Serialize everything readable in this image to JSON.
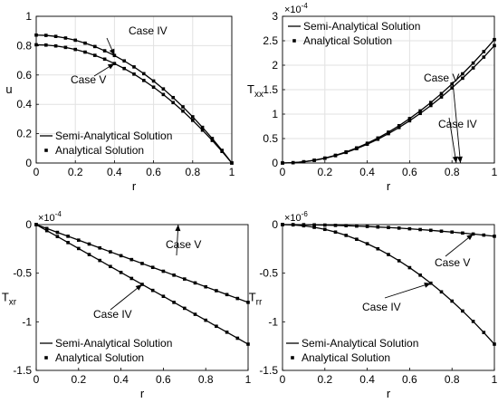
{
  "chart_data": [
    {
      "type": "line",
      "panel": "u",
      "xlabel": "r",
      "ylabel": "u",
      "xlim": [
        0,
        1
      ],
      "ylim": [
        0,
        1
      ],
      "xticks": [
        "0",
        "0.2",
        "0.4",
        "0.6",
        "0.8",
        "1"
      ],
      "yticks": [
        "0",
        "0.2",
        "0.4",
        "0.6",
        "0.8",
        "1"
      ],
      "exponent": "",
      "grid": true,
      "legend": {
        "placement": "bottom-left",
        "line_label": "Semi-Analytical Solution",
        "marker_label": "Analytical Solution"
      },
      "series": [
        {
          "name": "Case IV",
          "x": [
            0,
            0.05,
            0.1,
            0.15,
            0.2,
            0.25,
            0.3,
            0.35,
            0.4,
            0.45,
            0.5,
            0.55,
            0.6,
            0.65,
            0.7,
            0.75,
            0.8,
            0.85,
            0.9,
            0.95,
            1
          ],
          "values": [
            0.872,
            0.87,
            0.863,
            0.852,
            0.837,
            0.817,
            0.794,
            0.765,
            0.733,
            0.696,
            0.655,
            0.609,
            0.559,
            0.505,
            0.446,
            0.383,
            0.315,
            0.243,
            0.167,
            0.086,
            0.0
          ]
        },
        {
          "name": "Case V",
          "x": [
            0,
            0.05,
            0.1,
            0.15,
            0.2,
            0.25,
            0.3,
            0.35,
            0.4,
            0.45,
            0.5,
            0.55,
            0.6,
            0.65,
            0.7,
            0.75,
            0.8,
            0.85,
            0.9,
            0.95,
            1
          ],
          "values": [
            0.806,
            0.804,
            0.798,
            0.788,
            0.774,
            0.756,
            0.734,
            0.708,
            0.678,
            0.644,
            0.606,
            0.563,
            0.517,
            0.467,
            0.412,
            0.354,
            0.291,
            0.224,
            0.154,
            0.079,
            0.0
          ]
        }
      ],
      "annotations": [
        {
          "text": "Case IV",
          "series": 0,
          "point_x": 0.4
        },
        {
          "text": "Case V",
          "series": 1,
          "point_x": 0.4
        }
      ]
    },
    {
      "type": "line",
      "panel": "Txx",
      "xlabel": "r",
      "ylabel": "T",
      "ylabel_sub": "xx",
      "xlim": [
        0,
        1
      ],
      "ylim": [
        0,
        3
      ],
      "xticks": [
        "0",
        "0.2",
        "0.4",
        "0.6",
        "0.8",
        "1"
      ],
      "yticks": [
        "0",
        "0.5",
        "1",
        "1.5",
        "2",
        "2.5",
        "3"
      ],
      "exponent": "-4",
      "grid": true,
      "legend": {
        "placement": "top-left",
        "line_label": "Semi-Analytical Solution",
        "marker_label": "Analytical Solution"
      },
      "series": [
        {
          "name": "Case IV",
          "x": [
            0,
            0.05,
            0.1,
            0.15,
            0.2,
            0.25,
            0.3,
            0.35,
            0.4,
            0.45,
            0.5,
            0.55,
            0.6,
            0.65,
            0.7,
            0.75,
            0.8,
            0.85,
            0.9,
            0.95,
            1
          ],
          "values": [
            0.0,
            0.006,
            0.024,
            0.054,
            0.096,
            0.15,
            0.216,
            0.294,
            0.384,
            0.486,
            0.6,
            0.726,
            0.864,
            1.014,
            1.176,
            1.35,
            1.536,
            1.734,
            1.944,
            2.166,
            2.4
          ]
        },
        {
          "name": "Case V",
          "x": [
            0,
            0.05,
            0.1,
            0.15,
            0.2,
            0.25,
            0.3,
            0.35,
            0.4,
            0.45,
            0.5,
            0.55,
            0.6,
            0.65,
            0.7,
            0.75,
            0.8,
            0.85,
            0.9,
            0.95,
            1
          ],
          "values": [
            0.0,
            0.006,
            0.025,
            0.057,
            0.101,
            0.158,
            0.227,
            0.309,
            0.404,
            0.511,
            0.631,
            0.763,
            0.909,
            1.066,
            1.237,
            1.42,
            1.615,
            1.824,
            2.044,
            2.278,
            2.524
          ]
        }
      ],
      "annotations": [
        {
          "text": "Case V",
          "series": 1,
          "point_x": 0.84
        },
        {
          "text": "Case IV",
          "series": 0,
          "point_x": 0.82
        }
      ]
    },
    {
      "type": "line",
      "panel": "Txr",
      "xlabel": "r",
      "ylabel": "T",
      "ylabel_sub": "xr",
      "xlim": [
        0,
        1
      ],
      "ylim": [
        -1.5,
        0
      ],
      "xticks": [
        "0",
        "0.2",
        "0.4",
        "0.6",
        "0.8",
        "1"
      ],
      "yticks": [
        "0",
        "-0.5",
        "-1",
        "-1.5"
      ],
      "exponent": "-4",
      "grid": false,
      "legend": {
        "placement": "bottom-left",
        "line_label": "Semi-Analytical Solution",
        "marker_label": "Analytical Solution"
      },
      "series": [
        {
          "name": "Case V",
          "x": [
            0,
            0.05,
            0.1,
            0.15,
            0.2,
            0.25,
            0.3,
            0.35,
            0.4,
            0.45,
            0.5,
            0.55,
            0.6,
            0.65,
            0.7,
            0.75,
            0.8,
            0.85,
            0.9,
            0.95,
            1
          ],
          "values": [
            0.0,
            -0.04,
            -0.08,
            -0.12,
            -0.16,
            -0.2,
            -0.24,
            -0.28,
            -0.32,
            -0.36,
            -0.4,
            -0.44,
            -0.48,
            -0.52,
            -0.56,
            -0.6,
            -0.64,
            -0.68,
            -0.72,
            -0.76,
            -0.8
          ]
        },
        {
          "name": "Case IV",
          "x": [
            0,
            0.05,
            0.1,
            0.15,
            0.2,
            0.25,
            0.3,
            0.35,
            0.4,
            0.45,
            0.5,
            0.55,
            0.6,
            0.65,
            0.7,
            0.75,
            0.8,
            0.85,
            0.9,
            0.95,
            1
          ],
          "values": [
            0.0,
            -0.062,
            -0.123,
            -0.185,
            -0.246,
            -0.308,
            -0.369,
            -0.431,
            -0.492,
            -0.554,
            -0.615,
            -0.677,
            -0.738,
            -0.8,
            -0.861,
            -0.923,
            -0.984,
            -1.046,
            -1.107,
            -1.169,
            -1.23
          ]
        }
      ],
      "annotations": [
        {
          "text": "Case V",
          "series": 0,
          "point_x": 0.67
        },
        {
          "text": "Case IV",
          "series": 1,
          "point_x": 0.5
        }
      ]
    },
    {
      "type": "line",
      "panel": "Trr",
      "xlabel": "r",
      "ylabel": "T",
      "ylabel_sub": "rr",
      "xlim": [
        0,
        1
      ],
      "ylim": [
        -1.5,
        0
      ],
      "xticks": [
        "0",
        "0.2",
        "0.4",
        "0.6",
        "0.8",
        "1"
      ],
      "yticks": [
        "0",
        "-0.5",
        "-1",
        "-1.5"
      ],
      "exponent": "-6",
      "grid": false,
      "legend": {
        "placement": "bottom-left",
        "line_label": "Semi-Analytical Solution",
        "marker_label": "Analytical Solution"
      },
      "series": [
        {
          "name": "Case V",
          "x": [
            0,
            0.05,
            0.1,
            0.15,
            0.2,
            0.25,
            0.3,
            0.35,
            0.4,
            0.45,
            0.5,
            0.55,
            0.6,
            0.65,
            0.7,
            0.75,
            0.8,
            0.85,
            0.9,
            0.95,
            1
          ],
          "values": [
            0.0,
            0.0,
            -0.001,
            -0.003,
            -0.005,
            -0.008,
            -0.011,
            -0.015,
            -0.019,
            -0.025,
            -0.03,
            -0.036,
            -0.043,
            -0.051,
            -0.059,
            -0.068,
            -0.077,
            -0.087,
            -0.097,
            -0.108,
            -0.12
          ]
        },
        {
          "name": "Case IV",
          "x": [
            0,
            0.05,
            0.1,
            0.15,
            0.2,
            0.25,
            0.3,
            0.35,
            0.4,
            0.45,
            0.5,
            0.55,
            0.6,
            0.65,
            0.7,
            0.75,
            0.8,
            0.85,
            0.9,
            0.95,
            1
          ],
          "values": [
            0.0,
            -0.003,
            -0.012,
            -0.028,
            -0.049,
            -0.077,
            -0.111,
            -0.151,
            -0.197,
            -0.249,
            -0.308,
            -0.372,
            -0.443,
            -0.52,
            -0.603,
            -0.692,
            -0.787,
            -0.889,
            -0.996,
            -1.11,
            -1.23
          ]
        }
      ],
      "annotations": [
        {
          "text": "Case V",
          "series": 0,
          "point_x": 0.9
        },
        {
          "text": "Case IV",
          "series": 1,
          "point_x": 0.7
        }
      ]
    }
  ]
}
